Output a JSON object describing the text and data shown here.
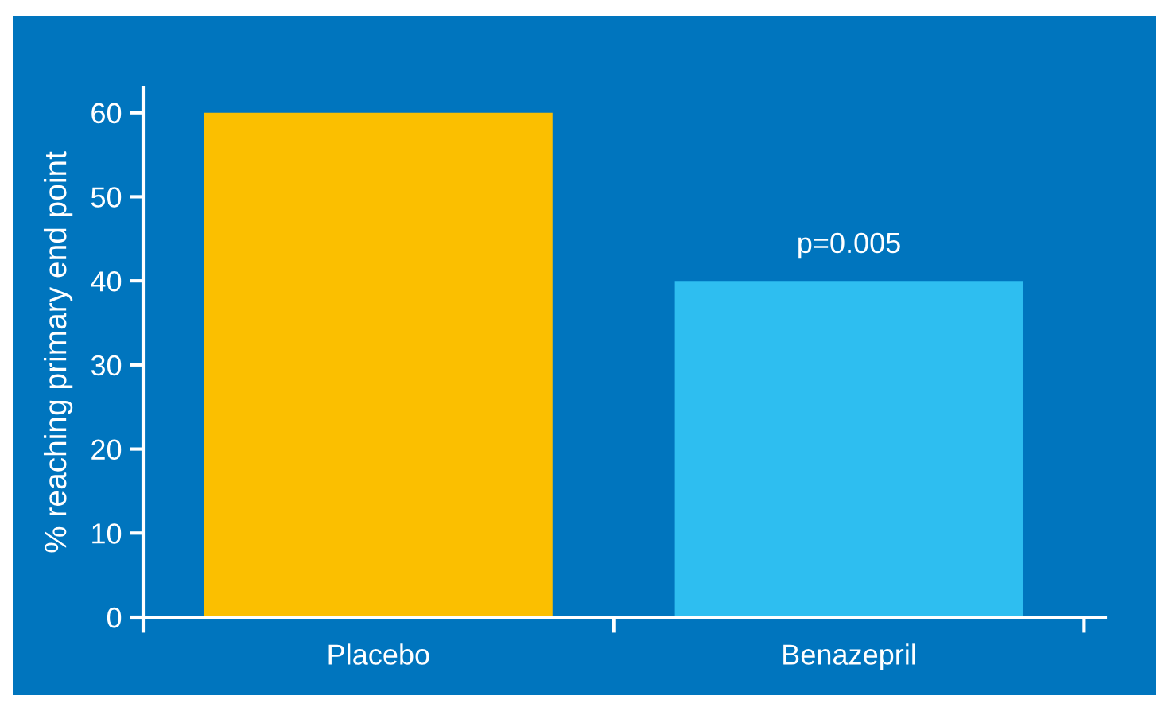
{
  "chart_data": {
    "type": "bar",
    "ylabel": "% reaching primary end point",
    "categories": [
      "Placebo",
      "Benazepril"
    ],
    "values": [
      60,
      40
    ],
    "colors": [
      "#fbbf00",
      "#2ebef0"
    ],
    "ylim": [
      0,
      63
    ],
    "yticks": [
      0,
      10,
      20,
      30,
      40,
      50,
      60
    ],
    "grid": false,
    "annotations": [
      {
        "text": "p=0.005",
        "x": "Benazepril",
        "y": 40
      }
    ]
  }
}
